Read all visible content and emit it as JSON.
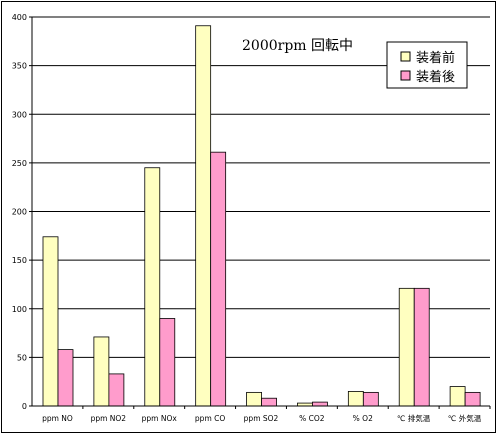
{
  "chart_data": {
    "type": "bar",
    "title": "",
    "annotation": "2000rpm 回転中",
    "xlabel": "",
    "ylabel": "",
    "categories": [
      "ppm NO",
      "ppm NO2",
      "ppm NOx",
      "ppm CO",
      "ppm SO2",
      "% CO2",
      "% O2",
      "℃ 排気温",
      "℃ 外気温"
    ],
    "series": [
      {
        "name": "装着前",
        "color": "#ffffc0",
        "values": [
          174,
          71,
          245,
          391,
          14,
          3,
          15,
          121,
          20
        ]
      },
      {
        "name": "装着後",
        "color": "#ff9ccc",
        "values": [
          58,
          33,
          90,
          261,
          8,
          4,
          14,
          121,
          14
        ]
      }
    ],
    "ylim": [
      0,
      400
    ],
    "yticks": [
      0,
      50,
      100,
      150,
      200,
      250,
      300,
      350,
      400
    ],
    "grid": true,
    "legend_position": "top-right"
  }
}
